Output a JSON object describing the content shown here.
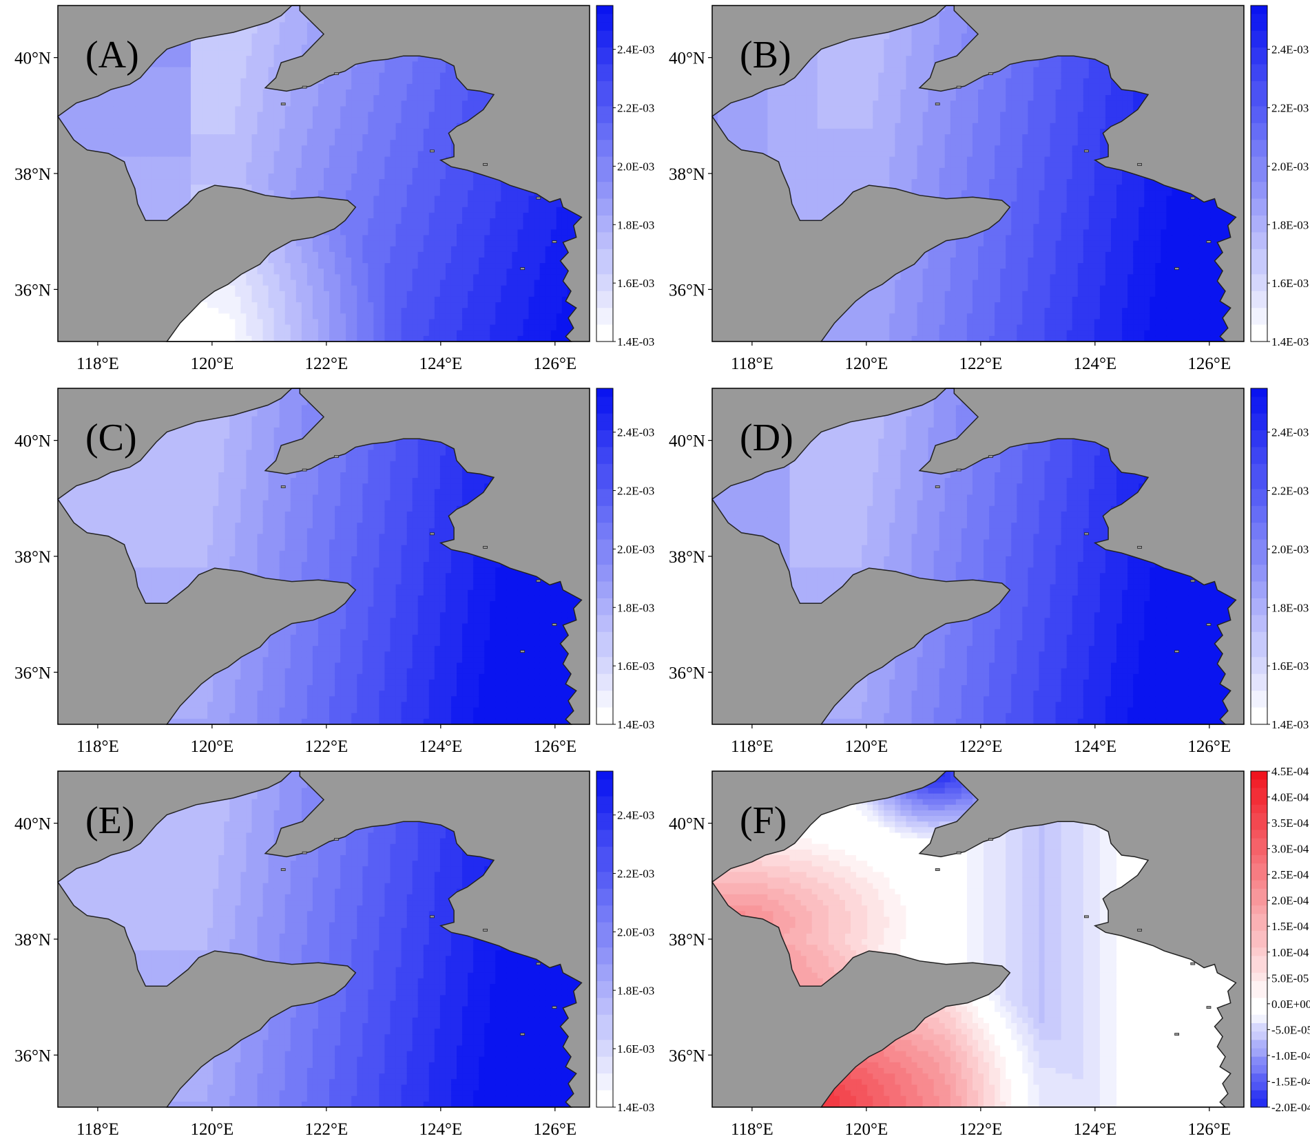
{
  "figure": {
    "panels": [
      {
        "id": "A",
        "label": "(A)",
        "scale": "abs",
        "pattern": "A"
      },
      {
        "id": "B",
        "label": "(B)",
        "scale": "abs",
        "pattern": "B"
      },
      {
        "id": "C",
        "label": "(C)",
        "scale": "abs",
        "pattern": "C"
      },
      {
        "id": "D",
        "label": "(D)",
        "scale": "abs",
        "pattern": "D"
      },
      {
        "id": "E",
        "label": "(E)",
        "scale": "abs",
        "pattern": "E"
      },
      {
        "id": "F",
        "label": "(F)",
        "scale": "diff",
        "pattern": "F"
      }
    ],
    "lon_ticks": [
      "118°E",
      "120°E",
      "122°E",
      "124°E",
      "126°E"
    ],
    "lat_ticks": [
      "40°N",
      "38°N",
      "36°N"
    ],
    "colorbars": {
      "abs": {
        "ticks": [
          "2.4E-03",
          "2.2E-03",
          "2.0E-03",
          "1.8E-03",
          "1.6E-03",
          "1.4E-03"
        ],
        "min": 0.0014,
        "max": 0.00255,
        "low_color": "#ffffff",
        "high_color": "#0a14f0"
      },
      "diff": {
        "ticks": [
          "4.5E-04",
          "4.0E-04",
          "3.5E-04",
          "3.0E-04",
          "2.5E-04",
          "2.0E-04",
          "1.5E-04",
          "1.0E-04",
          "5.0E-05",
          "0.0E+00",
          "-5.0E-05",
          "-1.0E-04",
          "-1.5E-04",
          "-2.0E-04"
        ],
        "min": -0.0002,
        "max": 0.00045,
        "neg_color": "#0a14f0",
        "zero_color": "#ffffff",
        "pos_color": "#f0141e"
      }
    },
    "colors": {
      "land": "#999999",
      "coast": "#222222",
      "frame": "#000000"
    }
  }
}
